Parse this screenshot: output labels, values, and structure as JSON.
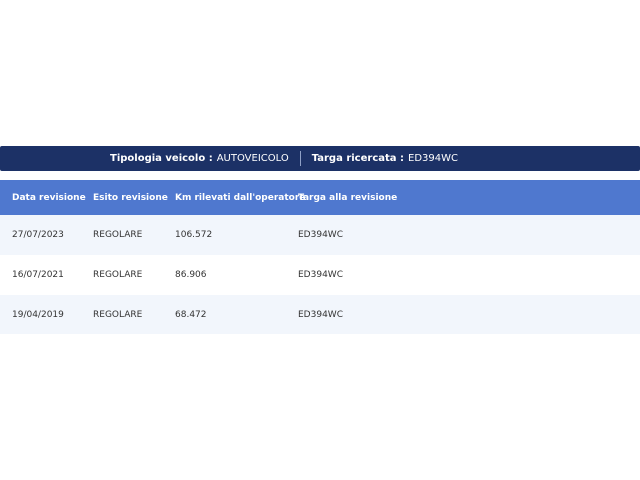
{
  "summary": {
    "vehicle_type_label": "Tipologia veicolo :",
    "vehicle_type": "AUTOVEICOLO",
    "plate_label": "Targa ricercata :",
    "plate": "ED394WC"
  },
  "table": {
    "headers": [
      "Data revisione",
      "Esito revisione",
      "Km rilevati dall'operatore",
      "Targa alla revisione"
    ],
    "rows": [
      [
        "27/07/2023",
        "REGOLARE",
        "106.572",
        "ED394WC"
      ],
      [
        "16/07/2021",
        "REGOLARE",
        "86.906",
        "ED394WC"
      ],
      [
        "19/04/2019",
        "REGOLARE",
        "68.472",
        "ED394WC"
      ]
    ]
  },
  "colors": {
    "summary_bar": "#1c3166",
    "table_header": "#4f78cf",
    "row_alt": "#f2f6fc"
  }
}
